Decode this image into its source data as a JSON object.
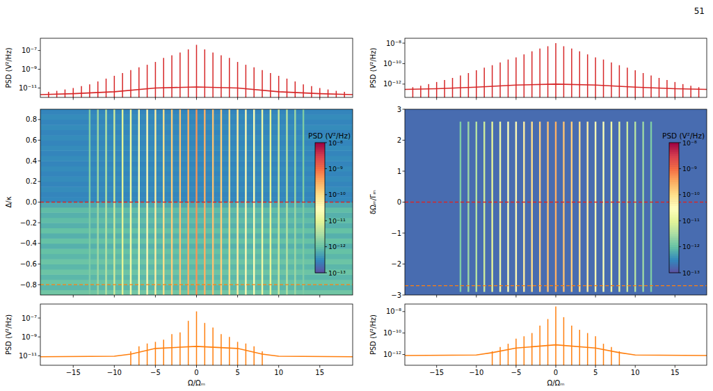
{
  "page": {
    "number": "51"
  },
  "chart_data": [
    {
      "type": "spectrum",
      "color": "#d62728",
      "ylabel": "PSD (V²/Hz)",
      "log": "y",
      "tick_labels": "y",
      "xlim": [
        -19,
        19
      ],
      "xticks": [
        -15,
        -10,
        -5,
        0,
        5,
        10,
        15
      ],
      "ylim": [
        1e-12,
        2e-06
      ],
      "yticks": [
        {
          "value": 1e-07,
          "label": "10⁻⁷"
        },
        {
          "value": 1e-09,
          "label": "10⁻⁹"
        },
        {
          "value": 1e-11,
          "label": "10⁻¹¹"
        }
      ],
      "series": [
        {
          "type": "line",
          "x": [
            -19,
            -15,
            -10,
            -5,
            0,
            5,
            10,
            15,
            19
          ],
          "values": [
            2e-12,
            2.5e-12,
            4e-12,
            1e-11,
            1.3e-11,
            1e-11,
            4e-12,
            2.5e-12,
            2e-12
          ]
        },
        {
          "type": "stem",
          "x": [
            -18,
            -17,
            -16,
            -15,
            -14,
            -13,
            -12,
            -11,
            -10,
            -9,
            -8,
            -7,
            -6,
            -5,
            -4,
            -3,
            -2,
            -1,
            0,
            1,
            2,
            3,
            4,
            5,
            6,
            7,
            8,
            9,
            10,
            11,
            12,
            13,
            14,
            15,
            16,
            17,
            18
          ],
          "values": [
            4e-12,
            5e-12,
            7e-12,
            1e-11,
            1.6e-11,
            2.5e-11,
            5e-11,
            1e-10,
            2e-10,
            4e-10,
            8e-10,
            1.6e-09,
            3e-09,
            6e-09,
            1.6e-08,
            3e-08,
            6e-08,
            1.3e-07,
            4e-07,
            1.3e-07,
            6e-08,
            3e-08,
            1.6e-08,
            6e-09,
            3e-09,
            1.6e-09,
            8e-10,
            4e-10,
            2e-10,
            1e-10,
            5e-11,
            2.5e-11,
            1.6e-11,
            1e-11,
            7e-12,
            5e-12,
            4e-12
          ]
        }
      ]
    },
    {
      "type": "spectrum",
      "color": "#d62728",
      "ylabel": "PSD (V²/Hz)",
      "log": "y",
      "tick_labels": "y",
      "xlim": [
        -19,
        19
      ],
      "xticks": [
        -15,
        -10,
        -5,
        0,
        5,
        10,
        15
      ],
      "ylim": [
        5e-14,
        3e-08
      ],
      "yticks": [
        {
          "value": 1e-08,
          "label": "10⁻⁸"
        },
        {
          "value": 1e-10,
          "label": "10⁻¹⁰"
        },
        {
          "value": 1e-12,
          "label": "10⁻¹²"
        }
      ],
      "series": [
        {
          "type": "line",
          "x": [
            -19,
            -15,
            -10,
            -5,
            0,
            5,
            10,
            15,
            19
          ],
          "values": [
            3e-13,
            3.5e-13,
            5e-13,
            8e-13,
            1e-12,
            8e-13,
            5e-13,
            3.5e-13,
            3e-13
          ]
        },
        {
          "type": "stem",
          "x": [
            -18,
            -17,
            -16,
            -15,
            -14,
            -13,
            -12,
            -11,
            -10,
            -9,
            -8,
            -7,
            -6,
            -5,
            -4,
            -3,
            -2,
            -1,
            0,
            1,
            2,
            3,
            4,
            5,
            6,
            7,
            8,
            9,
            10,
            11,
            12,
            13,
            14,
            15,
            16,
            17,
            18
          ],
          "values": [
            5e-13,
            7e-13,
            1e-12,
            1.6e-12,
            2.5e-12,
            4e-12,
            7e-12,
            1.2e-11,
            2.2e-11,
            4e-11,
            7e-11,
            1.3e-10,
            2.5e-10,
            4e-10,
            8e-10,
            1.6e-09,
            3e-09,
            5e-09,
            1e-08,
            5e-09,
            3e-09,
            1.6e-09,
            8e-10,
            4e-10,
            2.5e-10,
            1.3e-10,
            7e-11,
            4e-11,
            2.2e-11,
            1.2e-11,
            7e-12,
            4e-12,
            2.5e-12,
            1.6e-12,
            1e-12,
            7e-13,
            5e-13
          ]
        }
      ]
    },
    {
      "type": "heatmap",
      "ylabel": "Δ/κ",
      "tick_labels": "y",
      "xlim": [
        -19,
        19
      ],
      "xticks": [
        -15,
        -10,
        -5,
        0,
        5,
        10,
        15
      ],
      "ylim": [
        -0.9,
        0.9
      ],
      "yticks": [
        {
          "value": -0.8,
          "label": "−0.8"
        },
        {
          "value": -0.6,
          "label": "−0.6"
        },
        {
          "value": -0.4,
          "label": "−0.4"
        },
        {
          "value": -0.2,
          "label": "−0.2"
        },
        {
          "value": 0,
          "label": "0.0"
        },
        0.2,
        0.4,
        0.6,
        0.8
      ],
      "y_bins": [
        -0.9,
        -0.85,
        -0.8,
        -0.75,
        -0.7,
        -0.65,
        -0.6,
        -0.55,
        -0.5,
        -0.45,
        -0.4,
        -0.35,
        -0.3,
        -0.25,
        -0.2,
        -0.15,
        -0.1,
        -0.05,
        0,
        0.05,
        0.1,
        0.15,
        0.2,
        0.25,
        0.3,
        0.35,
        0.4,
        0.45,
        0.5,
        0.55,
        0.6,
        0.65,
        0.7,
        0.75,
        0.8,
        0.85,
        0.9
      ],
      "background": [
        1.2e-12,
        8e-13,
        1.1e-12,
        8e-13,
        1.1e-12,
        8e-13,
        1.1e-12,
        8e-13,
        1e-12,
        7e-13,
        1e-12,
        7e-13,
        1e-12,
        7e-13,
        9e-13,
        7e-13,
        9e-13,
        6e-13,
        3.2e-13,
        3e-13,
        3.4e-13,
        3e-13,
        3.4e-13,
        3e-13,
        3.4e-13,
        3e-13,
        3.4e-13,
        3e-13,
        3.4e-13,
        3e-13,
        3.4e-13,
        3e-13,
        3.4e-13,
        3e-13,
        3.4e-13,
        3e-13
      ],
      "line_x": [
        -13,
        -12,
        -11,
        -10,
        -9,
        -8,
        -7,
        -6,
        -5,
        -4,
        -3,
        -2,
        -1,
        0,
        1,
        2,
        3,
        4,
        5,
        6,
        7,
        8,
        9,
        10,
        11,
        12,
        13
      ],
      "line_values": [
        1.5e-12,
        2.5e-12,
        4e-12,
        6e-12,
        1e-11,
        1.5e-11,
        2.5e-11,
        4e-11,
        6e-11,
        1e-10,
        1.5e-10,
        2e-10,
        3e-10,
        5e-10,
        3e-10,
        2e-10,
        1.5e-10,
        1e-10,
        6e-11,
        4e-11,
        2.5e-11,
        1.5e-11,
        1e-11,
        6e-12,
        4e-12,
        2.5e-12,
        1.5e-12
      ],
      "line_span": [
        -0.9,
        0.9
      ],
      "hlines": [
        {
          "value": 0,
          "color": "#d62728"
        },
        {
          "value": -0.8,
          "color": "#ff7f0e"
        }
      ],
      "colorbar": {
        "label": "PSD (V²/Hz)",
        "range": [
          1e-13,
          1e-08
        ],
        "ticks": [
          {
            "value": 1e-08,
            "label": "10⁻⁸"
          },
          {
            "value": 1e-09,
            "label": "10⁻⁹"
          },
          {
            "value": 1e-10,
            "label": "10⁻¹⁰"
          },
          {
            "value": 1e-11,
            "label": "10⁻¹¹"
          },
          {
            "value": 1e-12,
            "label": "10⁻¹²"
          },
          {
            "value": 1e-13,
            "label": "10⁻¹³"
          }
        ]
      }
    },
    {
      "type": "heatmap",
      "ylabel": "δΩₘ/Γₘ",
      "tick_labels": "y",
      "xlim": [
        -19,
        19
      ],
      "xticks": [
        -15,
        -10,
        -5,
        0,
        5,
        10,
        15
      ],
      "ylim": [
        -3,
        3
      ],
      "yticks": [
        {
          "value": -3,
          "label": "−3"
        },
        {
          "value": -2,
          "label": "−2"
        },
        {
          "value": -1,
          "label": "−1"
        },
        0,
        1,
        2,
        3
      ],
      "y_bins": [
        -3,
        3
      ],
      "background": [
        1.8e-13
      ],
      "line_x": [
        -12,
        -11,
        -10,
        -9,
        -8,
        -7,
        -6,
        -5,
        -4,
        -3,
        -2,
        -1,
        0,
        1,
        2,
        3,
        4,
        5,
        6,
        7,
        8,
        9,
        10,
        11,
        12
      ],
      "line_values": [
        1.5e-12,
        2.5e-12,
        4e-12,
        6e-12,
        1e-11,
        1.5e-11,
        2.5e-11,
        4e-11,
        6e-11,
        1e-10,
        1.5e-10,
        2e-10,
        3e-10,
        2e-10,
        1.5e-10,
        1e-10,
        6e-11,
        4e-11,
        2.5e-11,
        1.5e-11,
        1e-11,
        6e-12,
        4e-12,
        2.5e-12,
        1.5e-12
      ],
      "line_span": [
        -2.9,
        2.6
      ],
      "hlines": [
        {
          "value": 0,
          "color": "#d62728"
        },
        {
          "value": -2.7,
          "color": "#ff7f0e"
        }
      ],
      "colorbar": {
        "label": "PSD (V²/Hz)",
        "range": [
          1e-13,
          1e-08
        ],
        "ticks": [
          {
            "value": 1e-08,
            "label": "10⁻⁸"
          },
          {
            "value": 1e-09,
            "label": "10⁻⁹"
          },
          {
            "value": 1e-10,
            "label": "10⁻¹⁰"
          },
          {
            "value": 1e-11,
            "label": "10⁻¹¹"
          },
          {
            "value": 1e-12,
            "label": "10⁻¹²"
          },
          {
            "value": 1e-13,
            "label": "10⁻¹³"
          }
        ]
      }
    },
    {
      "type": "spectrum",
      "color": "#ff7f0e",
      "ylabel": "PSD (V²/Hz)",
      "xlabel": "Ω/Ωₘ",
      "log": "y",
      "xlim": [
        -19,
        19
      ],
      "xticks": [
        {
          "value": -15,
          "label": "−15"
        },
        {
          "value": -10,
          "label": "−10"
        },
        {
          "value": -5,
          "label": "−5"
        },
        0,
        5,
        10,
        15
      ],
      "ylim": [
        1e-12,
        3e-06
      ],
      "yticks": [
        {
          "value": 1e-07,
          "label": "10⁻⁷"
        },
        {
          "value": 1e-09,
          "label": "10⁻⁹"
        },
        {
          "value": 1e-11,
          "label": "10⁻¹¹"
        }
      ],
      "series": [
        {
          "type": "line",
          "x": [
            -19,
            -10,
            -8,
            -5,
            0,
            5,
            8,
            10,
            19
          ],
          "values": [
            8e-12,
            9e-12,
            1.5e-11,
            6e-11,
            1e-10,
            6e-11,
            1.5e-11,
            9e-12,
            8e-12
          ]
        },
        {
          "type": "stem",
          "x": [
            -8,
            -7,
            -6,
            -5,
            -4,
            -3,
            -2,
            -1,
            0,
            1,
            2,
            3,
            4,
            5,
            6,
            7,
            8
          ],
          "values": [
            3e-11,
            1e-10,
            2e-10,
            3e-10,
            5e-10,
            2e-09,
            3e-09,
            5e-08,
            5e-07,
            3e-08,
            1e-08,
            2e-09,
            1e-09,
            3e-10,
            2e-10,
            1e-10,
            3e-11
          ]
        }
      ]
    },
    {
      "type": "spectrum",
      "color": "#ff7f0e",
      "ylabel": "PSD (V²/Hz)",
      "xlabel": "Ω/Ωₘ",
      "log": "y",
      "xlim": [
        -19,
        19
      ],
      "xticks": [
        {
          "value": -15,
          "label": "−15"
        },
        {
          "value": -10,
          "label": "−10"
        },
        {
          "value": -5,
          "label": "−5"
        },
        0,
        5,
        10,
        15
      ],
      "ylim": [
        1e-13,
        5e-08
      ],
      "yticks": [
        {
          "value": 1e-08,
          "label": "10⁻⁸"
        },
        {
          "value": 1e-10,
          "label": "10⁻¹⁰"
        },
        {
          "value": 1e-12,
          "label": "10⁻¹²"
        }
      ],
      "series": [
        {
          "type": "line",
          "x": [
            -19,
            -10,
            -8,
            -5,
            0,
            5,
            8,
            10,
            19
          ],
          "values": [
            8e-13,
            9e-13,
            1.5e-12,
            4e-12,
            8e-12,
            4e-12,
            1.5e-12,
            9e-13,
            8e-13
          ]
        },
        {
          "type": "stem",
          "x": [
            -8,
            -7,
            -6,
            -5,
            -4,
            -3,
            -2,
            -1,
            0,
            1,
            2,
            3,
            4,
            5,
            6,
            7,
            8
          ],
          "values": [
            2e-12,
            5e-12,
            1e-11,
            3e-11,
            5e-11,
            1e-10,
            5e-10,
            2e-09,
            3e-08,
            3e-09,
            5e-10,
            2e-10,
            1e-10,
            5e-11,
            1e-11,
            5e-12,
            2e-12
          ]
        }
      ]
    }
  ]
}
